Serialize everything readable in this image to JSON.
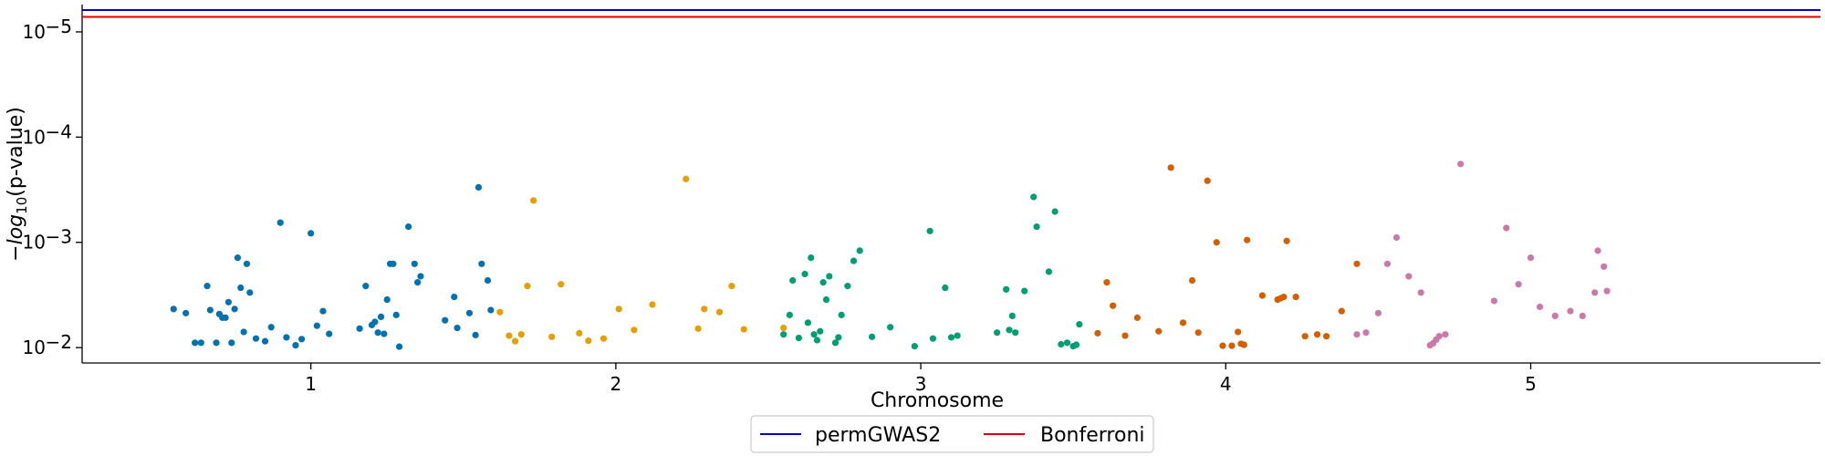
{
  "chart_data": {
    "type": "scatter",
    "xlabel": "Chromosome",
    "ylabel": "-log10(p-value)",
    "ylabel_parts": {
      "prefix": "−",
      "log": "log",
      "sub": "10",
      "suffix": "(p-value)"
    },
    "y_scale": "log-inverted",
    "ylim": [
      0.014,
      5.5e-06
    ],
    "xlim": [
      0.25,
      5.95
    ],
    "x_ticks": [
      {
        "value": 1.0,
        "label": "1"
      },
      {
        "value": 2.0,
        "label": "2"
      },
      {
        "value": 3.0,
        "label": "3"
      },
      {
        "value": 4.0,
        "label": "4"
      },
      {
        "value": 5.0,
        "label": "5"
      }
    ],
    "y_ticks": [
      {
        "value": 0.01,
        "base": "10",
        "exp": "−2"
      },
      {
        "value": 0.001,
        "base": "10",
        "exp": "−3"
      },
      {
        "value": 0.0001,
        "base": "10",
        "exp": "−4"
      },
      {
        "value": 1e-05,
        "base": "10",
        "exp": "−5"
      }
    ],
    "thresholds": [
      {
        "name": "permGWAS2",
        "value": 6.2e-06,
        "color": "#0000cc"
      },
      {
        "name": "Bonferroni",
        "value": 7.2e-06,
        "color": "#e00000"
      }
    ],
    "legend_position": "bottom-center",
    "series": [
      {
        "color": "#0072b2",
        "x": [
          0.55,
          0.59,
          0.62,
          0.64,
          0.66,
          0.67,
          0.69,
          0.7,
          0.71,
          0.72,
          0.73,
          0.74,
          0.75,
          0.76,
          0.77,
          0.78,
          0.79,
          0.8,
          0.82,
          0.85,
          0.87,
          0.9,
          0.92,
          0.95,
          0.97,
          1.0,
          1.02,
          1.04,
          1.06,
          1.16,
          1.18,
          1.2,
          1.21,
          1.22,
          1.23,
          1.24,
          1.25,
          1.26,
          1.27,
          1.28,
          1.29,
          1.32,
          1.34,
          1.35,
          1.36,
          1.44,
          1.47,
          1.48,
          1.52,
          1.54,
          1.55,
          1.56,
          1.58,
          1.59
        ],
        "y": [
          0.0043,
          0.0047,
          0.009,
          0.009,
          0.0026,
          0.0044,
          0.009,
          0.0048,
          0.0052,
          0.0052,
          0.0037,
          0.009,
          0.0043,
          0.0014,
          0.0027,
          0.0071,
          0.0016,
          0.003,
          0.0082,
          0.0087,
          0.0064,
          0.00065,
          0.008,
          0.0095,
          0.0083,
          0.00082,
          0.0062,
          0.0045,
          0.0074,
          0.0066,
          0.0026,
          0.0061,
          0.0057,
          0.0072,
          0.0051,
          0.0074,
          0.0035,
          0.0016,
          0.0016,
          0.0049,
          0.0098,
          0.00071,
          0.0016,
          0.0024,
          0.0021,
          0.0055,
          0.0033,
          0.0065,
          0.0047,
          0.0076,
          0.0003,
          0.0016,
          0.0023,
          0.0044
        ]
      },
      {
        "color": "#e69f00",
        "x": [
          1.62,
          1.65,
          1.67,
          1.69,
          1.71,
          1.73,
          1.79,
          1.82,
          1.88,
          1.91,
          1.96,
          2.01,
          2.06,
          2.12,
          2.23,
          2.27,
          2.29,
          2.34,
          2.38,
          2.42,
          2.55
        ],
        "y": [
          0.0046,
          0.0077,
          0.0087,
          0.0075,
          0.0026,
          0.0004,
          0.0079,
          0.0025,
          0.0073,
          0.0086,
          0.0082,
          0.0043,
          0.0068,
          0.0039,
          0.00025,
          0.0066,
          0.0043,
          0.0046,
          0.0026,
          0.0067,
          0.0065
        ]
      },
      {
        "color": "#009e73",
        "x": [
          2.55,
          2.57,
          2.58,
          2.6,
          2.62,
          2.63,
          2.64,
          2.65,
          2.66,
          2.67,
          2.68,
          2.69,
          2.7,
          2.72,
          2.73,
          2.74,
          2.76,
          2.78,
          2.8,
          2.84,
          2.9,
          2.98,
          3.03,
          3.04,
          3.08,
          3.1,
          3.12,
          3.25,
          3.28,
          3.29,
          3.3,
          3.31,
          3.34,
          3.37,
          3.38,
          3.42,
          3.44,
          3.46,
          3.48,
          3.5,
          3.51,
          3.52
        ],
        "y": [
          0.0075,
          0.0049,
          0.0023,
          0.0081,
          0.002,
          0.0058,
          0.0014,
          0.0075,
          0.0085,
          0.007,
          0.0024,
          0.0035,
          0.0021,
          0.009,
          0.008,
          0.0049,
          0.0026,
          0.0015,
          0.0012,
          0.0079,
          0.0064,
          0.0097,
          0.00078,
          0.0082,
          0.0027,
          0.008,
          0.0077,
          0.0072,
          0.0028,
          0.0068,
          0.005,
          0.0072,
          0.0029,
          0.00037,
          0.00071,
          0.0019,
          0.00051,
          0.0093,
          0.009,
          0.0097,
          0.0094,
          0.006
        ]
      },
      {
        "color": "#d55e00",
        "x": [
          3.58,
          3.61,
          3.63,
          3.67,
          3.71,
          3.78,
          3.82,
          3.86,
          3.89,
          3.91,
          3.94,
          3.97,
          3.99,
          4.02,
          4.04,
          4.05,
          4.06,
          4.07,
          4.12,
          4.17,
          4.18,
          4.19,
          4.2,
          4.23,
          4.26,
          4.3,
          4.33,
          4.38,
          4.43
        ],
        "y": [
          0.0073,
          0.0024,
          0.004,
          0.0077,
          0.0052,
          0.007,
          0.000195,
          0.0058,
          0.0023,
          0.0072,
          0.00026,
          0.001,
          0.0096,
          0.0096,
          0.0071,
          0.0092,
          0.0094,
          0.00095,
          0.0032,
          0.0035,
          0.0034,
          0.0033,
          0.00097,
          0.0033,
          0.0078,
          0.0075,
          0.0078,
          0.0045,
          0.0016
        ]
      },
      {
        "color": "#cc79a7",
        "x": [
          4.43,
          4.46,
          4.5,
          4.53,
          4.56,
          4.6,
          4.64,
          4.67,
          4.68,
          4.69,
          4.7,
          4.72,
          4.77,
          4.88,
          4.92,
          4.96,
          5.0,
          5.03,
          5.08,
          5.13,
          5.17,
          5.21,
          5.22,
          5.24,
          5.25
        ],
        "y": [
          0.0075,
          0.0072,
          0.0047,
          0.0016,
          0.0009,
          0.0021,
          0.003,
          0.0095,
          0.0091,
          0.0084,
          0.0078,
          0.0075,
          0.00018,
          0.0036,
          0.00073,
          0.0025,
          0.0014,
          0.0041,
          0.005,
          0.0045,
          0.005,
          0.003,
          0.0012,
          0.0017,
          0.0029
        ]
      }
    ]
  }
}
